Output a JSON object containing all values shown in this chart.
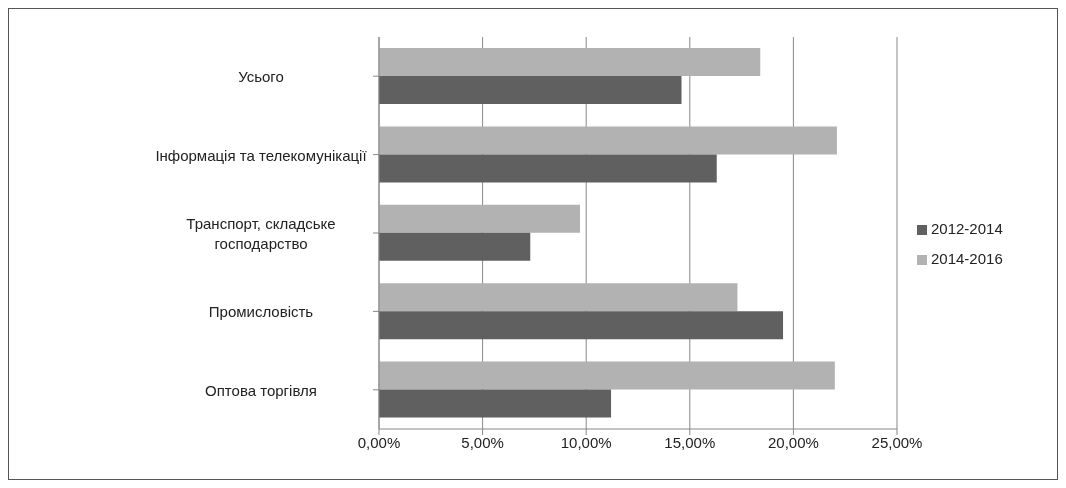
{
  "chart_data": {
    "type": "bar",
    "orientation": "horizontal",
    "categories": [
      "Усього",
      "Інформація та телекомунікації",
      "Транспорт, складське господарство",
      "Промисловість",
      "Оптова торгівля"
    ],
    "series": [
      {
        "name": "2014-2016",
        "color": "#b2b2b2",
        "values": [
          18.4,
          22.1,
          9.7,
          17.3,
          22.0
        ]
      },
      {
        "name": "2012-2014",
        "color": "#606060",
        "values": [
          14.6,
          16.3,
          7.3,
          19.5,
          11.2
        ]
      }
    ],
    "xlim": [
      0,
      25
    ],
    "xticks": [
      {
        "value": 0,
        "label": "0,00%"
      },
      {
        "value": 5,
        "label": "5,00%"
      },
      {
        "value": 10,
        "label": "10,00%"
      },
      {
        "value": 15,
        "label": "15,00%"
      },
      {
        "value": 20,
        "label": "20,00%"
      },
      {
        "value": 25,
        "label": "25,00%"
      }
    ],
    "grid": "x",
    "legend": "right"
  }
}
